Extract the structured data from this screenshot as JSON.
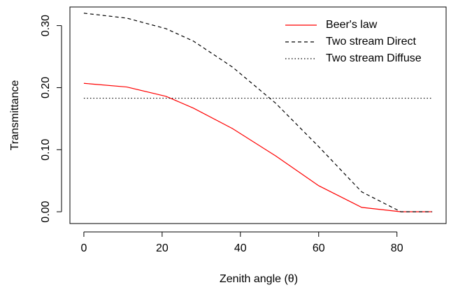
{
  "chart_data": {
    "type": "line",
    "x_label": "Zenith angle (θ)",
    "y_label": "Transmittance",
    "x": [
      0,
      11,
      21,
      28,
      38,
      49,
      60,
      71,
      81,
      89
    ],
    "series": [
      {
        "name": "Beer's law",
        "color": "#ff0000",
        "dash": "solid",
        "values": [
          0.207,
          0.201,
          0.186,
          0.167,
          0.134,
          0.09,
          0.042,
          0.007,
          0.0,
          0.0
        ]
      },
      {
        "name": "Two stream Direct",
        "color": "#000000",
        "dash": "dashed",
        "values": [
          0.32,
          0.312,
          0.295,
          0.275,
          0.233,
          0.175,
          0.105,
          0.032,
          0.0,
          0.0
        ]
      },
      {
        "name": "Two stream Diffuse",
        "color": "#000000",
        "dash": "dotted",
        "values": [
          0.183,
          0.183,
          0.183,
          0.183,
          0.183,
          0.183,
          0.183,
          0.183,
          0.183,
          0.183
        ]
      }
    ],
    "xlim": [
      -3.56,
      92.56
    ],
    "ylim": [
      -0.019,
      0.33
    ],
    "xticks": [
      0,
      20,
      40,
      60,
      80
    ],
    "yticks": [
      {
        "value": 0,
        "label": "0.00"
      },
      {
        "value": 0.1,
        "label": "0.10"
      },
      {
        "value": 0.2,
        "label": "0.20"
      },
      {
        "value": 0.3,
        "label": "0.30"
      }
    ],
    "legend": "top-right"
  }
}
